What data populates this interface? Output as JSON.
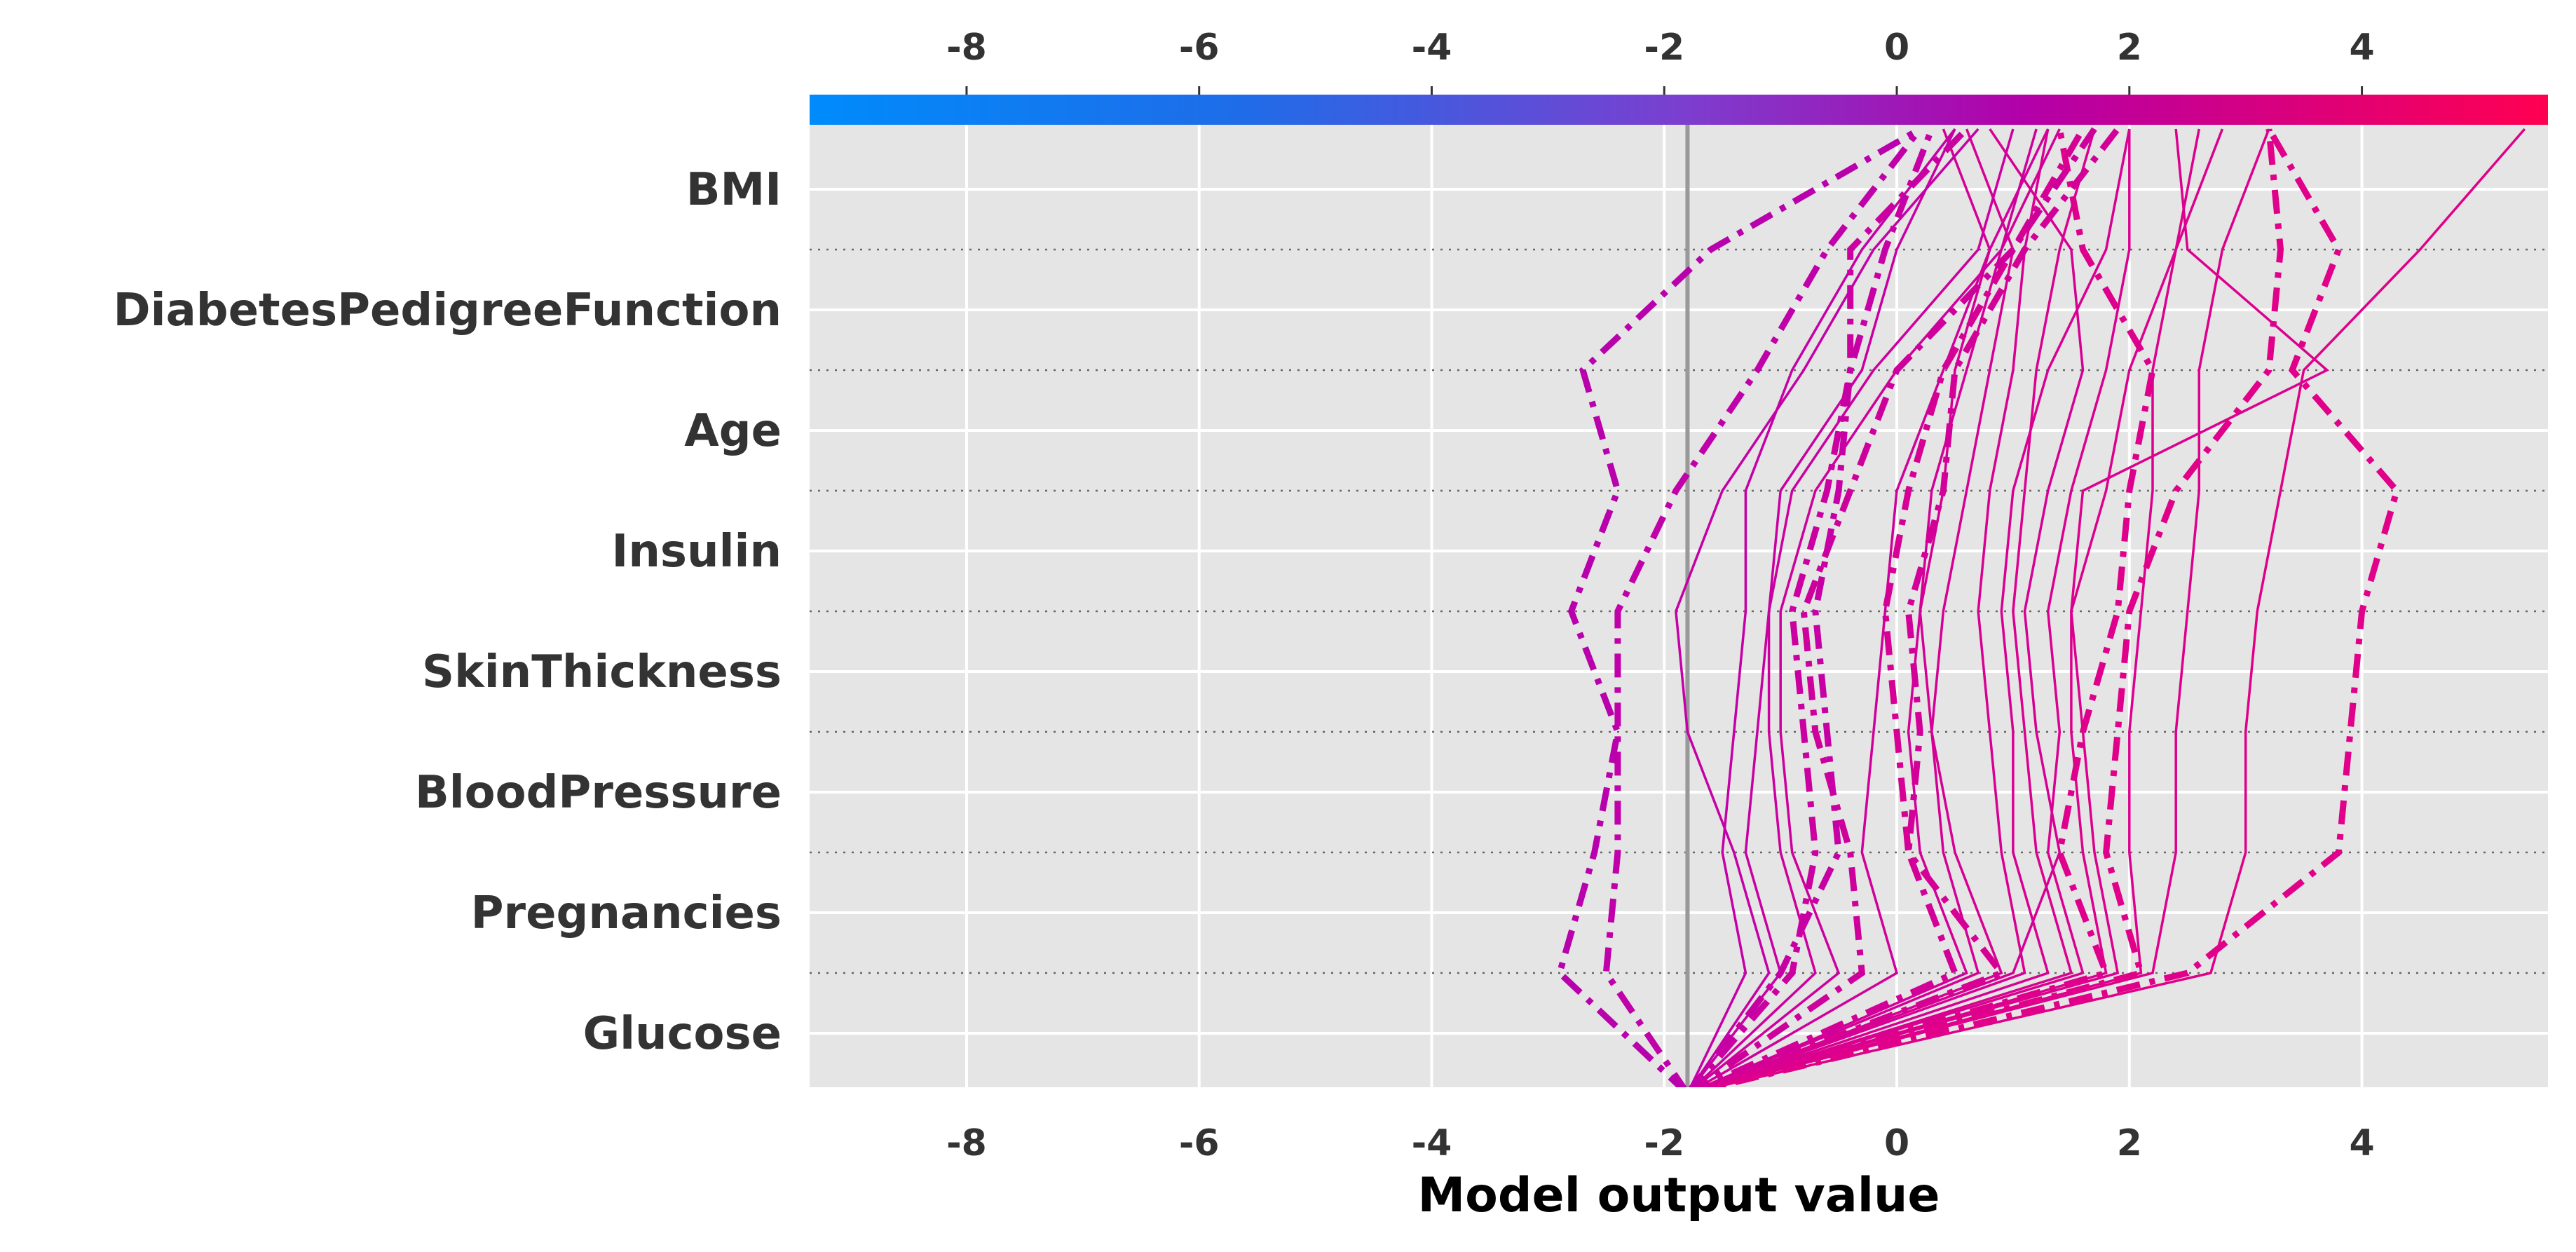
{
  "chart_data": {
    "type": "line",
    "subtype": "shap-decision-plot",
    "title": "",
    "xlabel": "Model output value",
    "ylabel": "",
    "xlim": [
      -9.35,
      5.6
    ],
    "xticks": [
      -8,
      -6,
      -4,
      -2,
      0,
      2,
      4
    ],
    "xtick_labels": [
      "-8",
      "-6",
      "-4",
      "-2",
      "0",
      "2",
      "4"
    ],
    "grid": true,
    "background": "#e5e5e5",
    "base_value": -1.8,
    "colorbar": {
      "position": "top",
      "from": "#008bfb",
      "mid": "#b300a8",
      "to": "#ff0052"
    },
    "features_top_to_bottom": [
      "BMI",
      "DiabetesPedigreeFunction",
      "Age",
      "Insulin",
      "SkinThickness",
      "BloodPressure",
      "Pregnancies",
      "Glucose"
    ],
    "series_point_order": "cumulative output from bottom (base value) up through Glucose, Pregnancies, BloodPressure, SkinThickness, Insulin, Age, DiabetesPedigreeFunction, BMI to final output",
    "series": [
      {
        "style": "solid",
        "color": "#e00088",
        "values": [
          -1.8,
          2.7,
          3.0,
          3.0,
          3.1,
          3.3,
          3.5,
          4.5,
          5.4
        ]
      },
      {
        "style": "dashdot",
        "color": "#e0008a",
        "values": [
          -1.8,
          2.5,
          3.8,
          3.9,
          4.0,
          4.3,
          3.4,
          3.8,
          3.2
        ]
      },
      {
        "style": "solid",
        "color": "#de008c",
        "values": [
          -1.8,
          2.2,
          2.4,
          2.4,
          2.5,
          2.6,
          2.6,
          2.8,
          3.2
        ]
      },
      {
        "style": "solid",
        "color": "#dc008e",
        "values": [
          -1.8,
          2.1,
          2.0,
          2.0,
          2.1,
          2.2,
          2.2,
          2.4,
          2.8
        ]
      },
      {
        "style": "dashdot",
        "color": "#e0008a",
        "values": [
          -1.8,
          2.1,
          1.8,
          1.9,
          2.0,
          2.4,
          3.2,
          3.3,
          3.2
        ]
      },
      {
        "style": "solid",
        "color": "#dc008e",
        "values": [
          -1.8,
          1.9,
          1.7,
          1.6,
          1.5,
          1.6,
          3.7,
          2.5,
          2.4
        ]
      },
      {
        "style": "solid",
        "color": "#dc008e",
        "values": [
          -1.8,
          1.8,
          1.6,
          1.5,
          1.5,
          1.8,
          2.0,
          2.4,
          2.6
        ]
      },
      {
        "style": "dashdot",
        "color": "#de008c",
        "values": [
          -1.8,
          1.8,
          1.4,
          1.6,
          1.9,
          2.0,
          2.2,
          1.6,
          1.4
        ]
      },
      {
        "style": "solid",
        "color": "#da0090",
        "values": [
          -1.8,
          1.6,
          1.3,
          1.4,
          1.3,
          1.5,
          1.8,
          2.0,
          2.0
        ]
      },
      {
        "style": "solid",
        "color": "#da0090",
        "values": [
          -1.8,
          1.5,
          1.2,
          1.1,
          1.0,
          1.1,
          1.2,
          1.4,
          1.7
        ]
      },
      {
        "style": "solid",
        "color": "#d80092",
        "values": [
          -1.8,
          1.3,
          1.0,
          1.0,
          0.9,
          1.0,
          1.3,
          1.8,
          2.0
        ]
      },
      {
        "style": "solid",
        "color": "#d80092",
        "values": [
          -1.8,
          1.1,
          0.9,
          0.8,
          0.7,
          0.8,
          1.0,
          1.1,
          1.3
        ]
      },
      {
        "style": "solid",
        "color": "#d60094",
        "values": [
          -1.8,
          1.0,
          1.4,
          1.2,
          1.1,
          1.3,
          1.6,
          1.5,
          0.8
        ]
      },
      {
        "style": "solid",
        "color": "#d60094",
        "values": [
          -1.8,
          0.9,
          0.5,
          0.3,
          0.4,
          0.6,
          0.8,
          1.0,
          0.6
        ]
      },
      {
        "style": "dashdot",
        "color": "#d60094",
        "values": [
          -1.8,
          0.9,
          0.1,
          0.0,
          -0.1,
          0.1,
          0.4,
          1.0,
          1.6
        ]
      },
      {
        "style": "solid",
        "color": "#d40096",
        "values": [
          -1.8,
          0.7,
          0.4,
          0.3,
          0.2,
          0.4,
          0.5,
          0.8,
          0.4
        ]
      },
      {
        "style": "solid",
        "color": "#d20098",
        "values": [
          -1.8,
          0.6,
          0.2,
          0.1,
          0.2,
          0.3,
          0.6,
          0.9,
          1.4
        ]
      },
      {
        "style": "dashdot",
        "color": "#d20098",
        "values": [
          -1.8,
          0.5,
          0.1,
          0.2,
          0.1,
          0.4,
          0.5,
          1.1,
          1.9
        ]
      },
      {
        "style": "solid",
        "color": "#d0009a",
        "values": [
          -1.8,
          0.0,
          -0.3,
          -0.2,
          -0.1,
          0.0,
          0.4,
          0.8,
          1.3
        ]
      },
      {
        "style": "dashdot",
        "color": "#ce009c",
        "values": [
          -1.8,
          -0.3,
          -0.4,
          -0.7,
          -0.8,
          -0.4,
          0.0,
          1.0,
          1.7
        ]
      },
      {
        "style": "solid",
        "color": "#ce009c",
        "values": [
          -1.8,
          -0.5,
          -0.9,
          -1.0,
          -1.0,
          -0.7,
          0.0,
          0.9,
          1.2
        ]
      },
      {
        "style": "solid",
        "color": "#cc009e",
        "values": [
          -1.8,
          -0.7,
          -1.0,
          -1.1,
          -1.1,
          -0.9,
          -0.2,
          0.7,
          1.0
        ]
      },
      {
        "style": "dashdot",
        "color": "#ca00a0",
        "values": [
          -1.8,
          -0.9,
          -0.7,
          -0.8,
          -0.9,
          -0.6,
          -0.4,
          -0.4,
          0.6
        ]
      },
      {
        "style": "solid",
        "color": "#c800a2",
        "values": [
          -1.8,
          -1.0,
          -1.3,
          -1.2,
          -1.1,
          -1.0,
          -0.3,
          0.0,
          0.5
        ]
      },
      {
        "style": "dashdot",
        "color": "#c600a4",
        "values": [
          -1.8,
          -1.0,
          -0.5,
          -0.6,
          -0.7,
          -0.5,
          -0.4,
          -0.1,
          0.3
        ]
      },
      {
        "style": "solid",
        "color": "#c400a6",
        "values": [
          -1.8,
          -1.1,
          -1.4,
          -1.8,
          -1.9,
          -1.5,
          -0.8,
          -0.2,
          0.7
        ]
      },
      {
        "style": "solid",
        "color": "#c400a6",
        "values": [
          -1.8,
          -1.3,
          -1.5,
          -1.4,
          -1.3,
          -1.3,
          -0.9,
          -0.3,
          0.5
        ]
      },
      {
        "style": "dashdot",
        "color": "#c000a8",
        "values": [
          -1.8,
          -2.5,
          -2.4,
          -2.4,
          -2.4,
          -1.9,
          -1.2,
          -0.6,
          0.2
        ]
      },
      {
        "style": "dashdot",
        "color": "#b800ac",
        "values": [
          -1.8,
          -2.9,
          -2.6,
          -2.4,
          -2.8,
          -2.4,
          -2.7,
          -1.6,
          0.2
        ]
      }
    ]
  }
}
